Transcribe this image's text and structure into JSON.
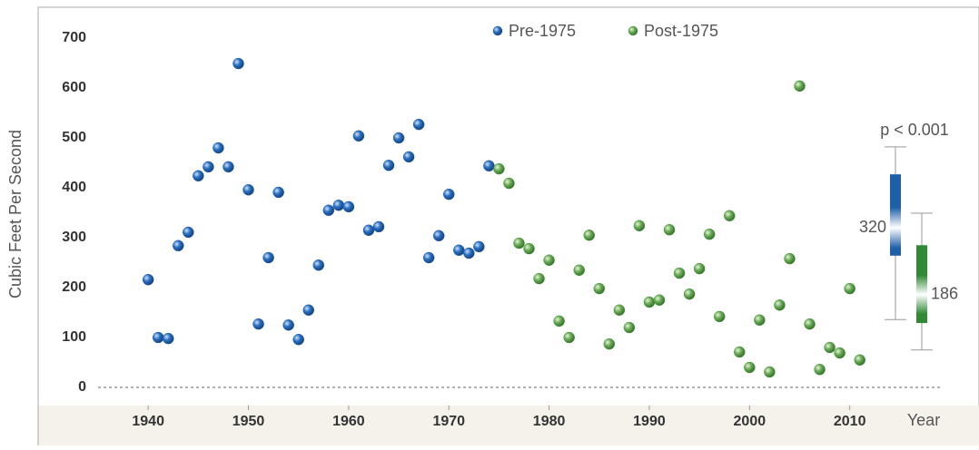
{
  "chart_data": {
    "type": "scatter",
    "y_label": "Cubic Feet Per Second",
    "x_label": "Year",
    "annotation": "p < 0.001",
    "xlim": [
      1935,
      2019
    ],
    "ylim": [
      -15,
      730
    ],
    "xticks": [
      1940,
      1950,
      1960,
      1970,
      1980,
      1990,
      2000,
      2010
    ],
    "yticks": [
      0,
      100,
      200,
      300,
      400,
      500,
      600,
      700
    ],
    "series": [
      {
        "name": "Pre-1975",
        "color": "#1f5fa8",
        "x": [
          1940,
          1941,
          1942,
          1943,
          1944,
          1945,
          1946,
          1947,
          1948,
          1949,
          1950,
          1951,
          1952,
          1953,
          1954,
          1955,
          1956,
          1957,
          1958,
          1959,
          1960,
          1961,
          1962,
          1963,
          1964,
          1965,
          1966,
          1967,
          1968,
          1969,
          1970,
          1971,
          1972,
          1973,
          1974
        ],
        "values": [
          216,
          100,
          98,
          284,
          311,
          424,
          442,
          480,
          442,
          649,
          396,
          127,
          260,
          391,
          125,
          96,
          155,
          245,
          355,
          365,
          362,
          504,
          315,
          322,
          445,
          500,
          462,
          527,
          260,
          304,
          387,
          275,
          269,
          282,
          444
        ]
      },
      {
        "name": "Post-1975",
        "color": "#3f9a3a",
        "x": [
          1975,
          1976,
          1977,
          1978,
          1979,
          1980,
          1981,
          1982,
          1983,
          1984,
          1985,
          1986,
          1987,
          1988,
          1989,
          1990,
          1991,
          1992,
          1993,
          1994,
          1995,
          1996,
          1997,
          1998,
          1999,
          2000,
          2001,
          2002,
          2003,
          2004,
          2005,
          2006,
          2007,
          2008,
          2009,
          2010,
          2011
        ],
        "values": [
          438,
          409,
          289,
          278,
          218,
          255,
          133,
          100,
          235,
          305,
          198,
          87,
          155,
          120,
          324,
          171,
          175,
          316,
          229,
          187,
          238,
          307,
          142,
          344,
          71,
          40,
          135,
          31,
          165,
          258,
          604,
          127,
          36,
          80,
          69,
          198,
          55
        ]
      }
    ],
    "summaries": [
      {
        "color": "#1f5fa8",
        "whisker": [
          136,
          482
        ],
        "box": [
          264,
          427
        ],
        "median": 320
      },
      {
        "color": "#2f8a33",
        "whisker": [
          75,
          349
        ],
        "box": [
          129,
          285
        ],
        "median": 186
      }
    ]
  }
}
